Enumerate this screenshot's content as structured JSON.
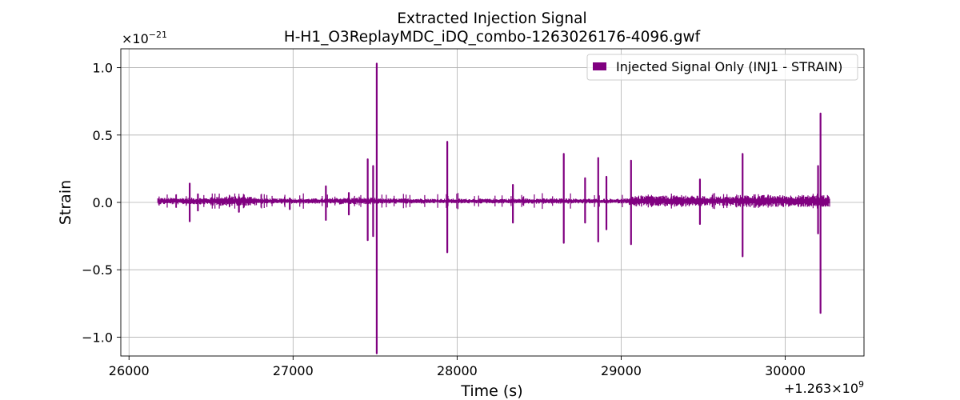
{
  "chart_data": {
    "type": "line",
    "title": "Extracted Injection Signal",
    "subtitle": "H-H1_O3ReplayMDC_iDQ_combo-1263026176-4096.gwf",
    "xlabel": "Time (s)",
    "ylabel": "Strain",
    "x_offset_label": "+1.263×10",
    "x_offset_exp": "9",
    "y_scale_label": "×10",
    "y_scale_exp": "−21",
    "xlim": [
      25950,
      30480
    ],
    "ylim": [
      -1.14,
      1.14
    ],
    "xticks": [
      26000,
      27000,
      28000,
      29000,
      30000
    ],
    "xtick_labels": [
      "26000",
      "27000",
      "28000",
      "29000",
      "30000"
    ],
    "yticks": [
      1.0,
      0.5,
      0.0,
      -0.5,
      -1.0
    ],
    "ytick_labels": [
      "1.0",
      "0.5",
      "0.0",
      "−0.5",
      "−1.0"
    ],
    "grid": true,
    "legend": {
      "position": "top-right"
    },
    "series": [
      {
        "name": "Injected Signal Only (INJ1 - STRAIN)",
        "color": "#800080",
        "x_range": [
          26176,
          30272
        ],
        "baseline": 0.01,
        "noise_segments": [
          {
            "x": [
              26176,
              26500
            ],
            "amp": 0.025
          },
          {
            "x": [
              26500,
              26780
            ],
            "amp": 0.035
          },
          {
            "x": [
              26780,
              27240
            ],
            "amp": 0.02
          },
          {
            "x": [
              27240,
              27500
            ],
            "amp": 0.025
          },
          {
            "x": [
              27500,
              27800
            ],
            "amp": 0.02
          },
          {
            "x": [
              27800,
              28400
            ],
            "amp": 0.018
          },
          {
            "x": [
              28400,
              28700
            ],
            "amp": 0.02
          },
          {
            "x": [
              28700,
              29050
            ],
            "amp": 0.018
          },
          {
            "x": [
              29050,
              29500
            ],
            "amp": 0.04
          },
          {
            "x": [
              29500,
              29700
            ],
            "amp": 0.035
          },
          {
            "x": [
              29700,
              30272
            ],
            "amp": 0.045
          }
        ],
        "spikes": [
          {
            "x": 26370,
            "max": 0.14,
            "min": -0.14
          },
          {
            "x": 26420,
            "max": 0.06,
            "min": -0.06
          },
          {
            "x": 26670,
            "max": 0.04,
            "min": -0.07
          },
          {
            "x": 26980,
            "max": 0.03,
            "min": -0.05
          },
          {
            "x": 27200,
            "max": 0.12,
            "min": -0.13
          },
          {
            "x": 27340,
            "max": 0.07,
            "min": -0.09
          },
          {
            "x": 27455,
            "max": 0.32,
            "min": -0.28
          },
          {
            "x": 27488,
            "max": 0.27,
            "min": -0.25
          },
          {
            "x": 27510,
            "max": 1.03,
            "min": -1.12
          },
          {
            "x": 27940,
            "max": 0.45,
            "min": -0.37
          },
          {
            "x": 28340,
            "max": 0.13,
            "min": -0.15
          },
          {
            "x": 28650,
            "max": 0.36,
            "min": -0.3
          },
          {
            "x": 28780,
            "max": 0.18,
            "min": -0.15
          },
          {
            "x": 28860,
            "max": 0.33,
            "min": -0.29
          },
          {
            "x": 28910,
            "max": 0.19,
            "min": -0.2
          },
          {
            "x": 29060,
            "max": 0.31,
            "min": -0.31
          },
          {
            "x": 29480,
            "max": 0.17,
            "min": -0.16
          },
          {
            "x": 29740,
            "max": 0.36,
            "min": -0.4
          },
          {
            "x": 30200,
            "max": 0.27,
            "min": -0.23
          },
          {
            "x": 30215,
            "max": 0.66,
            "min": -0.82
          }
        ]
      }
    ]
  }
}
